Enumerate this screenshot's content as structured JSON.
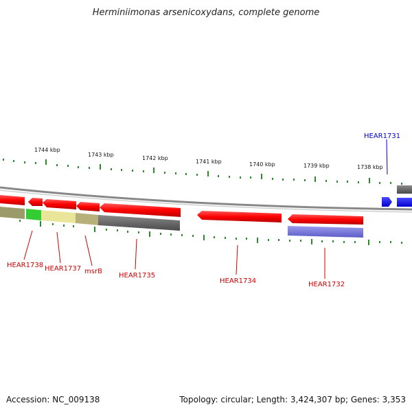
{
  "title": "Herminiimonas arsenicoxydans, complete genome",
  "footer": {
    "accession": "Accession: NC_009138",
    "summary": "Topology: circular; Length: 3,424,307 bp; Genes: 3,353"
  },
  "scale": {
    "ticks": [
      {
        "label": "1744 kbp"
      },
      {
        "label": "1743 kbp"
      },
      {
        "label": "1742 kbp"
      },
      {
        "label": "1741 kbp"
      },
      {
        "label": "1740 kbp"
      },
      {
        "label": "1739 kbp"
      },
      {
        "label": "1738 kbp"
      }
    ]
  },
  "genes": {
    "hear1731": "HEAR1731",
    "hear1732": "HEAR1732",
    "hear1734": "HEAR1734",
    "hear1735": "HEAR1735",
    "msrb": "msrB",
    "hear1737": "HEAR1737",
    "hear1738": "HEAR1738"
  },
  "colors": {
    "gene_forward": "#ff0000",
    "gene_highlight": "#0000ff",
    "label_red": "#cc0000",
    "label_blue": "#0000cc",
    "tick": "#2a8a2a",
    "backbone": "#888888"
  }
}
